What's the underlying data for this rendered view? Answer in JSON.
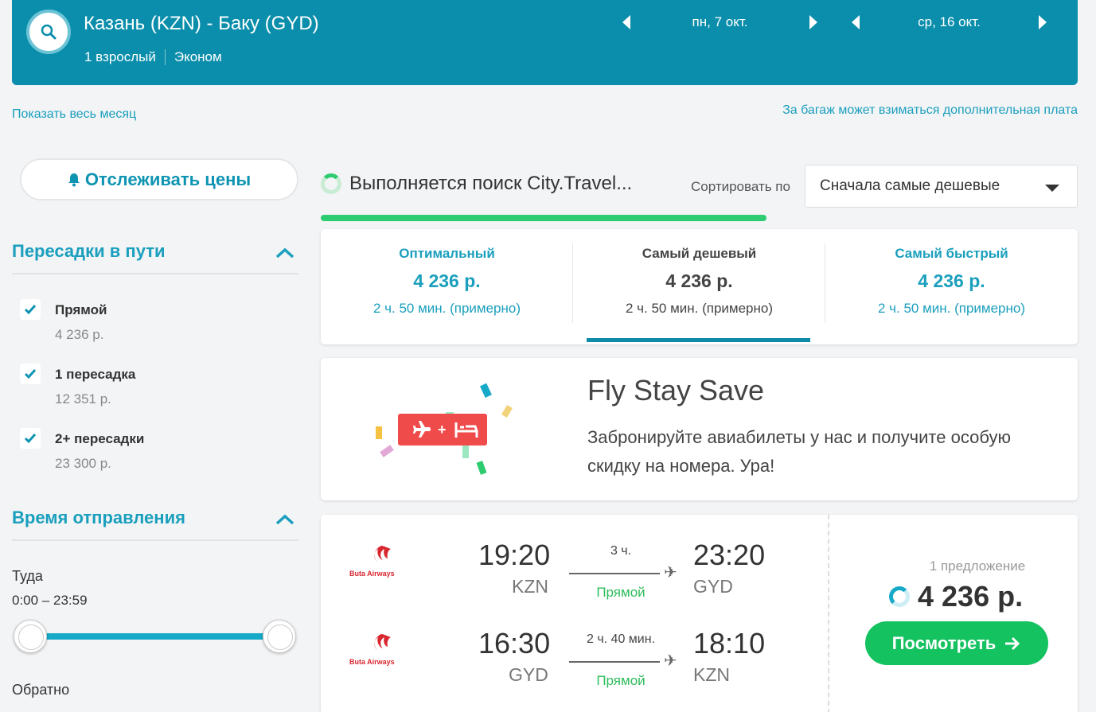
{
  "header": {
    "route": "Казань (KZN) - Баку (GYD)",
    "passengers": "1 взрослый",
    "cabin": "Эконом",
    "depart_date": "пн, 7 окт.",
    "return_date": "ср, 16 окт."
  },
  "links": {
    "show_month": "Показать весь месяц",
    "baggage_note": "За багаж может взиматься дополнительная плата"
  },
  "filters": {
    "track_prices": "Отслеживать цены",
    "stops_title": "Пересадки в пути",
    "stops": [
      {
        "label": "Прямой",
        "price": "4 236 р.",
        "checked": true
      },
      {
        "label": "1 пересадка",
        "price": "12 351 р.",
        "checked": true
      },
      {
        "label": "2+ пересадки",
        "price": "23 300 р.",
        "checked": true
      }
    ],
    "departure_title": "Время отправления",
    "outbound_label": "Туда",
    "outbound_range": "0:00 – 23:59",
    "return_label": "Обратно"
  },
  "search": {
    "status": "Выполняется поиск City.Travel...",
    "progress": 0.59,
    "sort_label": "Сортировать по",
    "sort_value": "Сначала самые дешевые"
  },
  "tabs": [
    {
      "title": "Оптимальный",
      "price": "4 236 р.",
      "duration": "2 ч. 50 мин. (примерно)",
      "active": false
    },
    {
      "title": "Самый дешевый",
      "price": "4 236 р.",
      "duration": "2 ч. 50 мин. (примерно)",
      "active": true
    },
    {
      "title": "Самый быстрый",
      "price": "4 236 р.",
      "duration": "2 ч. 50 мин. (примерно)",
      "active": false
    }
  ],
  "promo": {
    "title": "Fly Stay Save",
    "text": "Забронируйте авиабилеты у нас и получите особую скидку на номера. Ура!"
  },
  "flight": {
    "segments": [
      {
        "airline": "Buta Airways",
        "dep_time": "19:20",
        "dep_code": "KZN",
        "duration": "3 ч.",
        "type": "Прямой",
        "arr_time": "23:20",
        "arr_code": "GYD"
      },
      {
        "airline": "Buta Airways",
        "dep_time": "16:30",
        "dep_code": "GYD",
        "duration": "2 ч. 40 мин.",
        "type": "Прямой",
        "arr_time": "18:10",
        "arr_code": "KZN"
      }
    ],
    "offers": "1 предложение",
    "price": "4 236 р.",
    "button": "Посмотреть"
  },
  "colors": {
    "header_bg": "#0a8eab",
    "accent": "#1a9fbd",
    "green": "#14c260"
  }
}
